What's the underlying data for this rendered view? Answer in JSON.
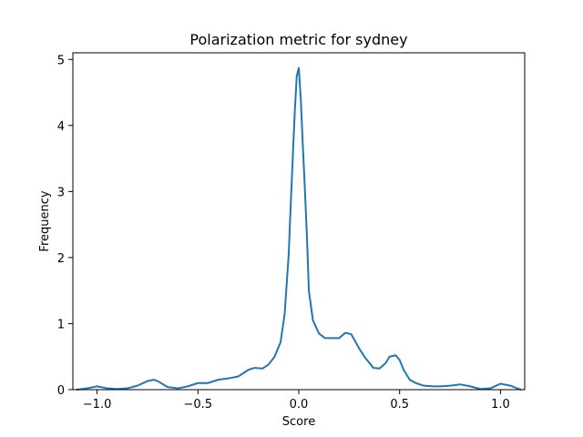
{
  "chart_data": {
    "type": "line",
    "title": "Polarization metric for sydney",
    "xlabel": "Score",
    "ylabel": "Frequency",
    "xlim": [
      -1.12,
      1.12
    ],
    "ylim": [
      0,
      5.1
    ],
    "xticks": [
      -1.0,
      -0.5,
      0.0,
      0.5,
      1.0
    ],
    "xtick_labels": [
      "−1.0",
      "−0.5",
      "0.0",
      "0.5",
      "1.0"
    ],
    "yticks": [
      0,
      1,
      2,
      3,
      4,
      5
    ],
    "ytick_labels": [
      "0",
      "1",
      "2",
      "3",
      "4",
      "5"
    ],
    "grid": false,
    "series": [
      {
        "color": "#1f77b4",
        "x": [
          -1.1,
          -1.05,
          -1.0,
          -0.95,
          -0.9,
          -0.85,
          -0.8,
          -0.75,
          -0.72,
          -0.7,
          -0.65,
          -0.6,
          -0.55,
          -0.5,
          -0.45,
          -0.4,
          -0.35,
          -0.3,
          -0.25,
          -0.22,
          -0.18,
          -0.15,
          -0.12,
          -0.09,
          -0.07,
          -0.05,
          -0.04,
          -0.03,
          -0.02,
          -0.01,
          0.0,
          0.01,
          0.02,
          0.03,
          0.04,
          0.05,
          0.07,
          0.1,
          0.13,
          0.16,
          0.2,
          0.23,
          0.26,
          0.3,
          0.33,
          0.37,
          0.4,
          0.43,
          0.45,
          0.48,
          0.5,
          0.52,
          0.55,
          0.58,
          0.62,
          0.67,
          0.7,
          0.75,
          0.8,
          0.85,
          0.9,
          0.95,
          1.0,
          1.05,
          1.1
        ],
        "y": [
          0.0,
          0.02,
          0.05,
          0.02,
          0.01,
          0.02,
          0.06,
          0.13,
          0.15,
          0.13,
          0.04,
          0.02,
          0.05,
          0.1,
          0.1,
          0.15,
          0.17,
          0.2,
          0.3,
          0.33,
          0.32,
          0.38,
          0.5,
          0.72,
          1.15,
          2.05,
          2.8,
          3.5,
          4.2,
          4.75,
          4.87,
          4.4,
          3.7,
          3.05,
          2.35,
          1.5,
          1.05,
          0.85,
          0.78,
          0.78,
          0.78,
          0.86,
          0.84,
          0.62,
          0.48,
          0.33,
          0.32,
          0.4,
          0.5,
          0.52,
          0.45,
          0.3,
          0.15,
          0.1,
          0.06,
          0.05,
          0.05,
          0.06,
          0.08,
          0.05,
          0.01,
          0.02,
          0.09,
          0.06,
          0.0
        ]
      }
    ]
  }
}
